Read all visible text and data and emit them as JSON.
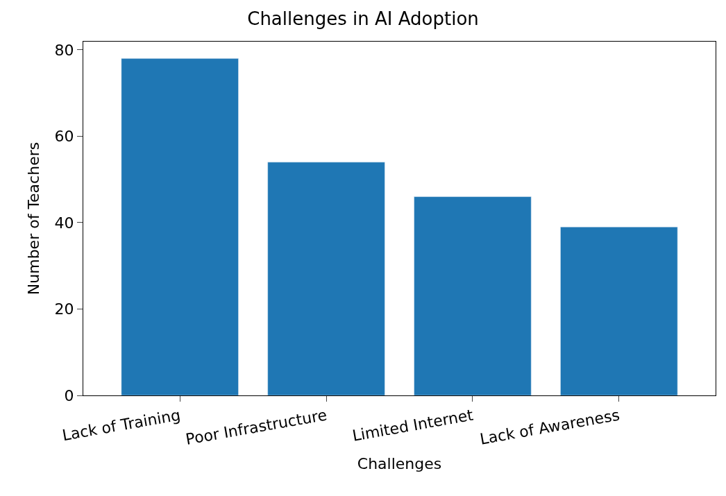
{
  "chart_data": {
    "type": "bar",
    "title": "Challenges in AI Adoption",
    "xlabel": "Challenges",
    "ylabel": "Number of Teachers",
    "categories": [
      "Lack of Training",
      "Poor Infrastructure",
      "Limited Internet",
      "Lack of Awareness"
    ],
    "values": [
      78,
      54,
      46,
      39
    ],
    "color": "#1f77b4",
    "ylim": [
      0,
      81.9
    ],
    "yticks": [
      0,
      20,
      40,
      60,
      80
    ]
  }
}
